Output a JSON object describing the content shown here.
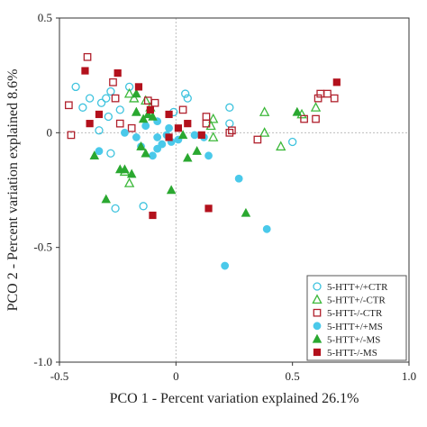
{
  "chart_data": {
    "type": "scatter",
    "xlabel": "PCO 1 - Percent variation explained 26.1%",
    "ylabel": "PCO 2 - Percent variation explained 8.6%",
    "xlim": [
      -0.5,
      1.0
    ],
    "ylim": [
      -1.0,
      0.5
    ],
    "x_ticks": [
      -0.5,
      0,
      0.5,
      1.0
    ],
    "x_tick_labels": [
      "-0.5",
      "0",
      "0.5",
      "1.0"
    ],
    "y_ticks": [
      -1.0,
      -0.5,
      0,
      0.5
    ],
    "y_tick_labels": [
      "-1.0",
      "-0.5",
      "0",
      "0.5"
    ],
    "grid": false,
    "zero_lines": true,
    "legend_position": "bottom-right",
    "series": [
      {
        "name": "5-HTT+/+CTR",
        "marker": "circle-open",
        "color": "#3ec3de",
        "points": [
          [
            -0.43,
            0.2
          ],
          [
            -0.37,
            0.15
          ],
          [
            -0.4,
            0.11
          ],
          [
            -0.32,
            0.13
          ],
          [
            -0.28,
            0.18
          ],
          [
            -0.3,
            0.15
          ],
          [
            -0.29,
            0.07
          ],
          [
            -0.33,
            0.01
          ],
          [
            -0.28,
            -0.09
          ],
          [
            -0.26,
            -0.33
          ],
          [
            -0.14,
            -0.32
          ],
          [
            -0.01,
            0.09
          ],
          [
            0.04,
            0.17
          ],
          [
            0.05,
            0.15
          ],
          [
            0.23,
            0.11
          ],
          [
            0.23,
            0.04
          ],
          [
            0.5,
            -0.04
          ],
          [
            -0.24,
            0.1
          ],
          [
            -0.2,
            0.2
          ]
        ]
      },
      {
        "name": "5-HTT+/-CTR",
        "marker": "triangle-open",
        "color": "#3cb83a",
        "points": [
          [
            -0.2,
            0.17
          ],
          [
            -0.2,
            -0.22
          ],
          [
            -0.13,
            0.14
          ],
          [
            -0.11,
            0.11
          ],
          [
            0.16,
            0.06
          ],
          [
            0.15,
            0.03
          ],
          [
            0.16,
            -0.02
          ],
          [
            0.38,
            0.09
          ],
          [
            0.38,
            0.0
          ],
          [
            0.45,
            -0.06
          ],
          [
            0.6,
            0.11
          ],
          [
            0.54,
            0.08
          ],
          [
            -0.18,
            0.15
          ],
          [
            -0.22,
            -0.17
          ]
        ]
      },
      {
        "name": "5-HTT-/-CTR",
        "marker": "square-open",
        "color": "#b0202c",
        "points": [
          [
            -0.46,
            0.12
          ],
          [
            -0.38,
            0.33
          ],
          [
            -0.27,
            0.22
          ],
          [
            -0.26,
            0.15
          ],
          [
            -0.19,
            0.02
          ],
          [
            -0.24,
            0.04
          ],
          [
            -0.45,
            -0.01
          ],
          [
            -0.12,
            0.14
          ],
          [
            -0.09,
            0.13
          ],
          [
            0.03,
            0.1
          ],
          [
            0.13,
            0.07
          ],
          [
            0.13,
            0.04
          ],
          [
            0.23,
            0.0
          ],
          [
            0.24,
            0.01
          ],
          [
            0.35,
            -0.03
          ],
          [
            0.55,
            0.06
          ],
          [
            0.61,
            0.15
          ],
          [
            0.62,
            0.17
          ],
          [
            0.65,
            0.17
          ],
          [
            0.68,
            0.15
          ],
          [
            0.6,
            0.06
          ]
        ]
      },
      {
        "name": "5-HTT+/+MS",
        "marker": "circle-filled",
        "color": "#4ac9ea",
        "points": [
          [
            -0.33,
            -0.08
          ],
          [
            -0.22,
            0.0
          ],
          [
            -0.17,
            -0.02
          ],
          [
            -0.08,
            0.05
          ],
          [
            -0.1,
            -0.1
          ],
          [
            -0.08,
            -0.07
          ],
          [
            -0.06,
            -0.05
          ],
          [
            -0.02,
            -0.04
          ],
          [
            -0.04,
            -0.01
          ],
          [
            0.01,
            -0.03
          ],
          [
            0.08,
            -0.01
          ],
          [
            0.12,
            -0.02
          ],
          [
            0.14,
            -0.1
          ],
          [
            -0.13,
            0.03
          ],
          [
            -0.08,
            -0.02
          ],
          [
            0.27,
            -0.2
          ],
          [
            0.39,
            -0.42
          ],
          [
            0.21,
            -0.58
          ],
          [
            -0.15,
            -0.06
          ],
          [
            -0.03,
            0.02
          ]
        ]
      },
      {
        "name": "5-HTT+/-MS",
        "marker": "triangle-filled",
        "color": "#2aa830",
        "points": [
          [
            -0.35,
            -0.1
          ],
          [
            -0.3,
            -0.29
          ],
          [
            -0.24,
            -0.16
          ],
          [
            -0.22,
            -0.16
          ],
          [
            -0.19,
            -0.18
          ],
          [
            -0.17,
            0.17
          ],
          [
            -0.15,
            -0.06
          ],
          [
            -0.13,
            -0.09
          ],
          [
            -0.12,
            0.08
          ],
          [
            -0.17,
            0.09
          ],
          [
            -0.1,
            0.07
          ],
          [
            0.03,
            -0.01
          ],
          [
            0.05,
            -0.11
          ],
          [
            0.3,
            -0.35
          ],
          [
            0.52,
            0.09
          ],
          [
            -0.17,
            0.09
          ],
          [
            -0.02,
            -0.25
          ],
          [
            0.09,
            -0.08
          ],
          [
            -0.14,
            0.06
          ]
        ]
      },
      {
        "name": "5-HTT-/-MS",
        "marker": "square-filled",
        "color": "#b3111c",
        "points": [
          [
            -0.39,
            0.27
          ],
          [
            -0.33,
            0.08
          ],
          [
            -0.25,
            0.26
          ],
          [
            -0.16,
            0.2
          ],
          [
            -0.11,
            0.1
          ],
          [
            -0.1,
            -0.36
          ],
          [
            0.01,
            0.02
          ],
          [
            0.05,
            0.04
          ],
          [
            0.14,
            -0.33
          ],
          [
            0.69,
            0.22
          ],
          [
            -0.37,
            0.04
          ],
          [
            -0.03,
            0.08
          ],
          [
            -0.03,
            -0.02
          ],
          [
            0.11,
            -0.01
          ]
        ]
      }
    ]
  }
}
